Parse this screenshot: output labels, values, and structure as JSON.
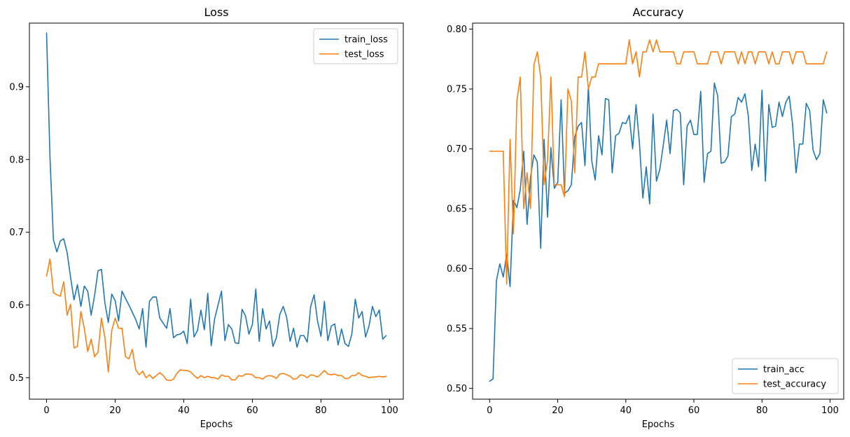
{
  "chart_data": [
    {
      "type": "line",
      "title": "Loss",
      "xlabel": "Epochs",
      "ylabel": "",
      "xlim": [
        -5,
        104
      ],
      "ylim": [
        0.4705,
        0.9875
      ],
      "xticks": [
        0,
        20,
        40,
        60,
        80,
        100
      ],
      "xtick_labels": [
        "0",
        "20",
        "40",
        "60",
        "80",
        "100"
      ],
      "yticks": [
        0.5,
        0.6,
        0.7,
        0.8,
        0.9
      ],
      "ytick_labels": [
        "0.5",
        "0.6",
        "0.7",
        "0.8",
        "0.9"
      ],
      "legend_position": "top-right",
      "series": [
        {
          "name": "train_loss",
          "color": "#1f77b4",
          "values": [
            0.974,
            0.803,
            0.69,
            0.673,
            0.688,
            0.691,
            0.672,
            0.638,
            0.607,
            0.628,
            0.598,
            0.626,
            0.619,
            0.586,
            0.613,
            0.647,
            0.649,
            0.603,
            0.576,
            0.615,
            0.606,
            0.578,
            0.619,
            0.609,
            0.6,
            0.59,
            0.58,
            0.567,
            0.595,
            0.542,
            0.605,
            0.611,
            0.611,
            0.582,
            0.575,
            0.568,
            0.595,
            0.555,
            0.559,
            0.56,
            0.564,
            0.547,
            0.608,
            0.556,
            0.565,
            0.593,
            0.566,
            0.616,
            0.544,
            0.581,
            0.6,
            0.619,
            0.551,
            0.573,
            0.567,
            0.548,
            0.547,
            0.594,
            0.585,
            0.56,
            0.573,
            0.622,
            0.55,
            0.595,
            0.567,
            0.578,
            0.543,
            0.555,
            0.587,
            0.598,
            0.583,
            0.55,
            0.568,
            0.542,
            0.558,
            0.558,
            0.549,
            0.598,
            0.614,
            0.578,
            0.557,
            0.605,
            0.551,
            0.571,
            0.574,
            0.545,
            0.567,
            0.547,
            0.543,
            0.56,
            0.608,
            0.582,
            0.591,
            0.556,
            0.571,
            0.598,
            0.584,
            0.593,
            0.553,
            0.558
          ]
        },
        {
          "name": "test_loss",
          "color": "#ff7f0e",
          "values": [
            0.64,
            0.663,
            0.617,
            0.614,
            0.612,
            0.632,
            0.586,
            0.601,
            0.541,
            0.543,
            0.591,
            0.568,
            0.536,
            0.553,
            0.529,
            0.535,
            0.582,
            0.555,
            0.508,
            0.565,
            0.582,
            0.568,
            0.568,
            0.529,
            0.526,
            0.539,
            0.511,
            0.504,
            0.509,
            0.5,
            0.504,
            0.499,
            0.503,
            0.507,
            0.503,
            0.497,
            0.496,
            0.498,
            0.506,
            0.511,
            0.51,
            0.51,
            0.508,
            0.503,
            0.499,
            0.503,
            0.5,
            0.502,
            0.5,
            0.5,
            0.498,
            0.504,
            0.502,
            0.502,
            0.497,
            0.497,
            0.503,
            0.502,
            0.505,
            0.505,
            0.504,
            0.5,
            0.5,
            0.498,
            0.502,
            0.503,
            0.502,
            0.499,
            0.505,
            0.506,
            0.504,
            0.502,
            0.498,
            0.499,
            0.504,
            0.503,
            0.5,
            0.504,
            0.503,
            0.501,
            0.505,
            0.51,
            0.505,
            0.504,
            0.505,
            0.503,
            0.503,
            0.499,
            0.499,
            0.503,
            0.503,
            0.507,
            0.503,
            0.502,
            0.5,
            0.501,
            0.501,
            0.502,
            0.501,
            0.502
          ]
        }
      ]
    },
    {
      "type": "line",
      "title": "Accuracy",
      "xlabel": "Epochs",
      "ylabel": "",
      "xlim": [
        -5,
        104
      ],
      "ylim": [
        0.491,
        0.805
      ],
      "xticks": [
        0,
        20,
        40,
        60,
        80,
        100
      ],
      "xtick_labels": [
        "0",
        "20",
        "40",
        "60",
        "80",
        "100"
      ],
      "yticks": [
        0.5,
        0.55,
        0.6,
        0.65,
        0.7,
        0.75,
        0.8
      ],
      "ytick_labels": [
        "0.50",
        "0.55",
        "0.60",
        "0.65",
        "0.70",
        "0.75",
        "0.80"
      ],
      "legend_position": "bottom-right",
      "series": [
        {
          "name": "train_acc",
          "color": "#1f77b4",
          "values": [
            0.506,
            0.508,
            0.59,
            0.604,
            0.593,
            0.612,
            0.585,
            0.657,
            0.651,
            0.666,
            0.698,
            0.637,
            0.676,
            0.695,
            0.689,
            0.617,
            0.708,
            0.643,
            0.701,
            0.667,
            0.672,
            0.741,
            0.663,
            0.665,
            0.67,
            0.71,
            0.719,
            0.722,
            0.686,
            0.752,
            0.69,
            0.674,
            0.711,
            0.695,
            0.742,
            0.741,
            0.68,
            0.711,
            0.713,
            0.722,
            0.721,
            0.728,
            0.7,
            0.737,
            0.705,
            0.659,
            0.685,
            0.654,
            0.729,
            0.673,
            0.683,
            0.703,
            0.724,
            0.696,
            0.732,
            0.733,
            0.73,
            0.67,
            0.719,
            0.724,
            0.712,
            0.712,
            0.748,
            0.672,
            0.696,
            0.698,
            0.755,
            0.744,
            0.688,
            0.689,
            0.694,
            0.727,
            0.729,
            0.743,
            0.739,
            0.746,
            0.727,
            0.682,
            0.704,
            0.685,
            0.749,
            0.673,
            0.737,
            0.718,
            0.719,
            0.739,
            0.727,
            0.739,
            0.744,
            0.72,
            0.68,
            0.704,
            0.704,
            0.738,
            0.732,
            0.699,
            0.691,
            0.696,
            0.741,
            0.73
          ]
        },
        {
          "name": "test_accuracy",
          "color": "#ff7f0e",
          "values": [
            0.698,
            0.698,
            0.698,
            0.698,
            0.698,
            0.587,
            0.708,
            0.629,
            0.74,
            0.76,
            0.65,
            0.68,
            0.65,
            0.77,
            0.781,
            0.76,
            0.67,
            0.69,
            0.76,
            0.67,
            0.67,
            0.67,
            0.66,
            0.75,
            0.74,
            0.68,
            0.76,
            0.76,
            0.781,
            0.75,
            0.76,
            0.76,
            0.771,
            0.771,
            0.771,
            0.771,
            0.771,
            0.771,
            0.771,
            0.771,
            0.771,
            0.791,
            0.771,
            0.781,
            0.76,
            0.781,
            0.781,
            0.791,
            0.781,
            0.791,
            0.781,
            0.781,
            0.781,
            0.781,
            0.781,
            0.771,
            0.771,
            0.781,
            0.781,
            0.781,
            0.781,
            0.771,
            0.771,
            0.771,
            0.771,
            0.781,
            0.781,
            0.781,
            0.771,
            0.781,
            0.781,
            0.781,
            0.781,
            0.771,
            0.781,
            0.771,
            0.781,
            0.781,
            0.771,
            0.781,
            0.781,
            0.781,
            0.771,
            0.781,
            0.771,
            0.771,
            0.781,
            0.781,
            0.781,
            0.771,
            0.781,
            0.781,
            0.781,
            0.771,
            0.771,
            0.771,
            0.771,
            0.771,
            0.771,
            0.781
          ]
        }
      ]
    }
  ]
}
